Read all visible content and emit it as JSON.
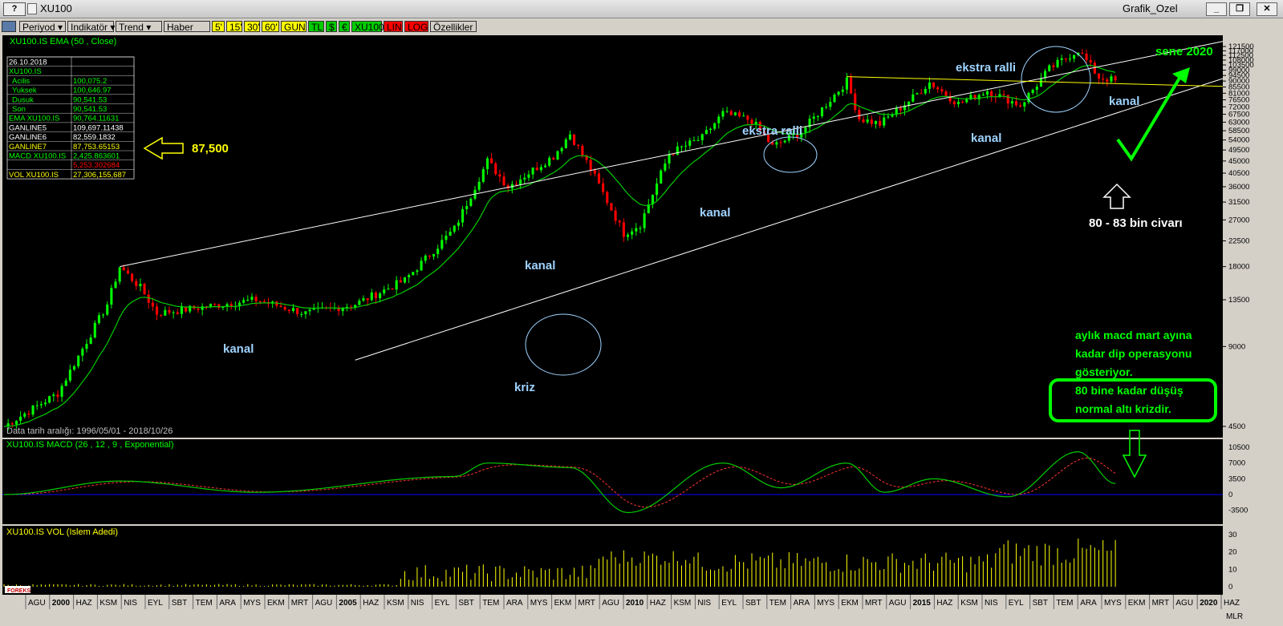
{
  "window": {
    "help_label": "?",
    "title": "XU100",
    "right_title": "Grafik_Ozel",
    "minimize_label": "_",
    "restore_label": "❐",
    "close_label": "✕"
  },
  "toolbar": {
    "buttons": [
      {
        "label": "Periyod",
        "bg": "#d4d0c8",
        "fg": "#000",
        "dropdown": true
      },
      {
        "label": "Indikatör",
        "bg": "#d4d0c8",
        "fg": "#000",
        "dropdown": true
      },
      {
        "label": "Trend",
        "bg": "#d4d0c8",
        "fg": "#000",
        "dropdown": true
      },
      {
        "label": "Haber",
        "bg": "#d4d0c8",
        "fg": "#000",
        "dropdown": false
      },
      {
        "label": "5'",
        "bg": "#ffff00",
        "fg": "#000",
        "dropdown": false
      },
      {
        "label": "15'",
        "bg": "#ffff00",
        "fg": "#000",
        "dropdown": false
      },
      {
        "label": "30'",
        "bg": "#ffff00",
        "fg": "#000",
        "dropdown": false
      },
      {
        "label": "60'",
        "bg": "#ffff00",
        "fg": "#000",
        "dropdown": false
      },
      {
        "label": "GUN",
        "bg": "#ffff00",
        "fg": "#000",
        "dropdown": false
      },
      {
        "label": "TL",
        "bg": "#00cc00",
        "fg": "#000",
        "dropdown": false
      },
      {
        "label": "$",
        "bg": "#00cc00",
        "fg": "#000",
        "dropdown": false
      },
      {
        "label": "€",
        "bg": "#00cc00",
        "fg": "#000",
        "dropdown": false
      },
      {
        "label": "XU100",
        "bg": "#00cc00",
        "fg": "#000",
        "dropdown": false
      },
      {
        "label": "LIN",
        "bg": "#ff0000",
        "fg": "#000",
        "dropdown": false
      },
      {
        "label": "LOG",
        "bg": "#ff0000",
        "fg": "#000",
        "dropdown": false
      },
      {
        "label": "Özellikler",
        "bg": "#d4d0c8",
        "fg": "#000",
        "dropdown": false
      }
    ]
  },
  "price_panel": {
    "title": "XU100.IS EMA (50 , Close)",
    "axis_unit": "AY",
    "date_range_text": "Data tarih aralığı: 1996/05/01 - 2018/10/26"
  },
  "info_table": {
    "date": "26.10.2018",
    "symbol": "XU100.IS",
    "rows": [
      {
        "label": "Acilis",
        "value": "100,075.2",
        "color": "#00ff00"
      },
      {
        "label": "Yuksek",
        "value": "100,646.97",
        "color": "#00ff00"
      },
      {
        "label": "Dusuk",
        "value": "90,541.53",
        "color": "#00ff00"
      },
      {
        "label": "Son",
        "value": "90,541.53",
        "color": "#00ff00"
      },
      {
        "label": "EMA XU100.IS",
        "value": "90,764.11631",
        "color": "#00ff00"
      },
      {
        "label": "GANLINE5",
        "value": "109,697.11438",
        "color": "#ffffff"
      },
      {
        "label": "GANLINE6",
        "value": "82,559.1832",
        "color": "#ffffff"
      },
      {
        "label": "GANLINE7",
        "value": "87,753.65153",
        "color": "#ffff00"
      },
      {
        "label": "MACD XU100.IS",
        "value": "2,425.863601",
        "color": "#00ff00"
      },
      {
        "label": "",
        "value": "5,253.302684",
        "color": "#ff0000"
      },
      {
        "label": "VOL XU100.IS",
        "value": "27,306,155,687",
        "color": "#ffff00"
      }
    ]
  },
  "annotations": {
    "arrow_label": "87,500",
    "kanal": "kanal",
    "kriz": "kriz",
    "ekstra_ralli": "ekstra ralli",
    "sene_2020": "sene 2020",
    "bin_civari": "80 - 83 bin civarı",
    "note_line1": "aylık macd mart ayına",
    "note_line2": "kadar dip operasyonu",
    "note_line3": "gösteriyor.",
    "note_line4": "80 bine kadar düşüş",
    "note_line5": "normal altı krizdir."
  },
  "macd_panel": {
    "title": "XU100.IS MACD (26 , 12 , 9 , Exponential)"
  },
  "vol_panel": {
    "title": "XU100.IS VOL (Islem Adedi)",
    "corner_label": "MLR",
    "logo_text": "FOREKS"
  },
  "colors": {
    "up": "#00ff00",
    "down": "#ff0000",
    "ema": "#00cc00",
    "channel": "#ffffff",
    "resistance": "#ffff00",
    "macd": "#00cc00",
    "signal": "#ff3333",
    "volume": "#ffff00",
    "zero_line": "#0000ff",
    "annotation_text": "#9fd3ff",
    "note_text": "#00ff00",
    "arrow_fill": "#ffff00"
  },
  "chart_data": {
    "type": "candlestick",
    "title": "XU100.IS EMA (50 , Close)",
    "x_axis_type": "monthly",
    "x_range": [
      "1996-05",
      "2020-12"
    ],
    "y_scale": "log",
    "y_ticks": [
      4500,
      9000,
      13500,
      18000,
      22500,
      27000,
      31500,
      36000,
      40500,
      45000,
      49500,
      54000,
      58500,
      63000,
      67500,
      72000,
      76500,
      81000,
      85500,
      90000,
      94500,
      99000,
      103500,
      108000,
      112500,
      117000,
      121500
    ],
    "x_tick_labels": [
      "AGU",
      "2000",
      "HAZ",
      "KSM",
      "NIS",
      "EYL",
      "SBT",
      "TEM",
      "ARA",
      "MYS",
      "EKM",
      "MRT",
      "AGU",
      "2005",
      "HAZ",
      "KSM",
      "NIS",
      "EYL",
      "SBT",
      "TEM",
      "ARA",
      "MYS",
      "EKM",
      "MRT",
      "AGU",
      "2010",
      "HAZ",
      "KSM",
      "NIS",
      "EYL",
      "SBT",
      "TEM",
      "ARA",
      "MYS",
      "EKM",
      "MRT",
      "AGU",
      "2015",
      "HAZ",
      "KSM",
      "NIS",
      "EYL",
      "SBT",
      "TEM",
      "ARA",
      "MYS",
      "EKM",
      "MRT",
      "AGU",
      "2020",
      "HAZ"
    ],
    "close_anchors": [
      {
        "date": "1996-05",
        "value": 4500
      },
      {
        "date": "1997-06",
        "value": 6000
      },
      {
        "date": "1998-06",
        "value": 13000
      },
      {
        "date": "1998-09",
        "value": 18000
      },
      {
        "date": "1999-02",
        "value": 15000
      },
      {
        "date": "1999-06",
        "value": 12000
      },
      {
        "date": "2001-06",
        "value": 13500
      },
      {
        "date": "2002-06",
        "value": 12000
      },
      {
        "date": "2003-06",
        "value": 13000
      },
      {
        "date": "2004-06",
        "value": 16000
      },
      {
        "date": "2005-06",
        "value": 25000
      },
      {
        "date": "2006-02",
        "value": 45000
      },
      {
        "date": "2006-07",
        "value": 36000
      },
      {
        "date": "2007-06",
        "value": 47000
      },
      {
        "date": "2007-10",
        "value": 57000
      },
      {
        "date": "2008-03",
        "value": 42000
      },
      {
        "date": "2008-11",
        "value": 24000
      },
      {
        "date": "2009-03",
        "value": 26000
      },
      {
        "date": "2009-10",
        "value": 48000
      },
      {
        "date": "2010-06",
        "value": 55000
      },
      {
        "date": "2010-11",
        "value": 68000
      },
      {
        "date": "2011-06",
        "value": 64000
      },
      {
        "date": "2011-11",
        "value": 51000
      },
      {
        "date": "2012-06",
        "value": 58000
      },
      {
        "date": "2013-05",
        "value": 90000
      },
      {
        "date": "2013-08",
        "value": 65000
      },
      {
        "date": "2014-01",
        "value": 62000
      },
      {
        "date": "2014-09",
        "value": 78000
      },
      {
        "date": "2015-01",
        "value": 89000
      },
      {
        "date": "2015-08",
        "value": 74000
      },
      {
        "date": "2016-03",
        "value": 83000
      },
      {
        "date": "2016-11",
        "value": 73000
      },
      {
        "date": "2017-06",
        "value": 100000
      },
      {
        "date": "2018-01",
        "value": 118000
      },
      {
        "date": "2018-06",
        "value": 93000
      },
      {
        "date": "2018-10",
        "value": 90541
      }
    ],
    "channel_lines": [
      {
        "name": "upper",
        "from": {
          "date": "1998-09",
          "value": 18000
        },
        "to": {
          "date": "2020-12",
          "value": 127000
        }
      },
      {
        "name": "lower",
        "from": {
          "date": "2003-06",
          "value": 8000
        },
        "to": {
          "date": "2020-12",
          "value": 92000
        }
      },
      {
        "name": "resistance",
        "from": {
          "date": "2013-05",
          "value": 93500
        },
        "to": {
          "date": "2020-12",
          "value": 86000
        }
      }
    ],
    "macd": {
      "y_ticks": [
        -3500,
        0,
        3500,
        7000,
        10500
      ],
      "anchors": [
        {
          "date": "1996-05",
          "macd": 0
        },
        {
          "date": "1998-09",
          "macd": 3000
        },
        {
          "date": "2001-06",
          "macd": 500
        },
        {
          "date": "2005-06",
          "macd": 4000
        },
        {
          "date": "2006-02",
          "macd": 7000
        },
        {
          "date": "2007-10",
          "macd": 6000
        },
        {
          "date": "2008-12",
          "macd": -4000
        },
        {
          "date": "2010-11",
          "macd": 7000
        },
        {
          "date": "2012-01",
          "macd": 1500
        },
        {
          "date": "2013-05",
          "macd": 7000
        },
        {
          "date": "2014-02",
          "macd": 500
        },
        {
          "date": "2015-02",
          "macd": 3500
        },
        {
          "date": "2016-08",
          "macd": -500
        },
        {
          "date": "2018-01",
          "macd": 9500
        },
        {
          "date": "2018-10",
          "macd": 2425
        }
      ]
    },
    "volume": {
      "y_ticks": [
        0,
        10,
        20,
        30
      ],
      "unit_hint": "Islem Adedi"
    }
  }
}
